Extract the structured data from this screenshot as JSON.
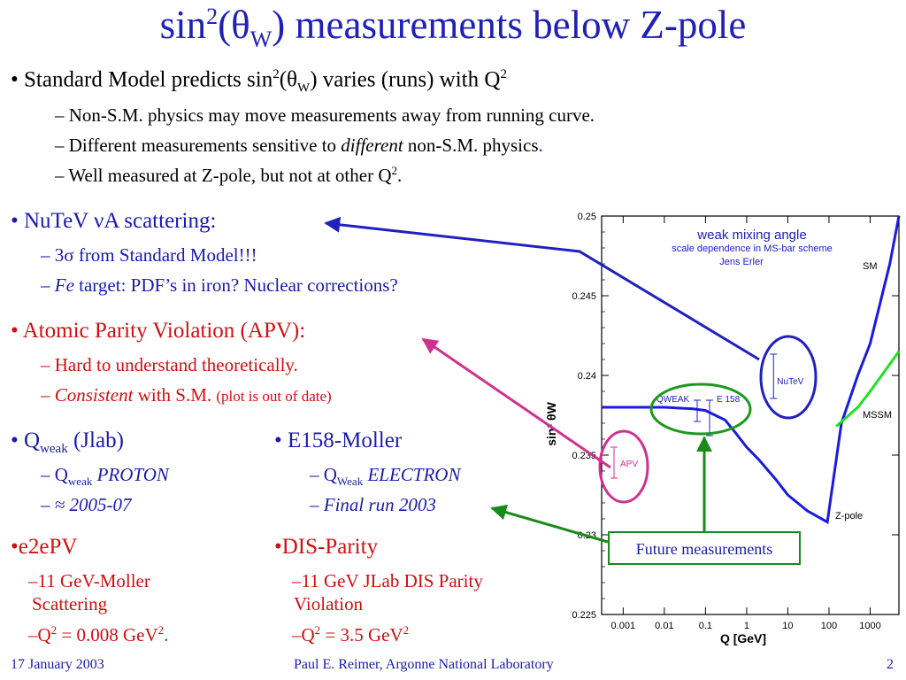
{
  "slide": {
    "title_pre": "sin",
    "title_sup": "2",
    "title_mid": "(θ",
    "title_sub": "W",
    "title_post": ") measurements below Z-pole",
    "intro": {
      "l1_a": "• Standard Model predicts sin",
      "l1_sup": "2",
      "l1_b": "(θ",
      "l1_sub": "W",
      "l1_c": ") varies (runs) with Q",
      "l1_sup2": "2",
      "l2": "– Non-S.M. physics may move measurements away from running curve.",
      "l3_a": "– Different measurements sensitive to ",
      "l3_em": "different",
      "l3_b": " non-S.M. physics",
      "l3_dot": ".",
      "l4_a": "– Well measured at Z-pole, but not at other Q",
      "l4_sup": "2",
      "l4_b": "."
    },
    "nutev": {
      "head": "•  NuTeV νA scattering:",
      "s1": "–  3σ from Standard Model!!!",
      "s2_em": "Fe",
      "s2_rest": " target:  PDF’s in iron?  Nuclear corrections?"
    },
    "apv": {
      "head": "•  Atomic Parity Violation (APV):",
      "s1": "–  Hard to understand theoretically.",
      "s2_em": "Consistent",
      "s2_rest": " with S.M. ",
      "s2_small": "(plot is out of date)"
    },
    "qweak": {
      "head_a": "•  Q",
      "head_sub": "weak",
      "head_b": " (Jlab)",
      "s1_a": "–  Q",
      "s1_sub": "weak",
      "s1_em": " PROTON",
      "s2": "–    ≈ 2005-07"
    },
    "e158": {
      "head": "•  E158-Moller",
      "s1_a": "–  Q",
      "s1_sub": "Weak",
      "s1_em": " ELECTRON",
      "s2": "–  Final run 2003"
    },
    "e2epv": {
      "head": "•e2ePV",
      "s1a": "–11 GeV-Moller",
      "s1b": "Scattering",
      "s2_a": "–Q",
      "s2_sup": "2",
      "s2_b": " = 0.008 GeV",
      "s2_sup2": "2",
      "s2_c": "."
    },
    "dis": {
      "head": "•DIS-Parity",
      "s1a": "–11 GeV JLab DIS Parity",
      "s1b": "Violation",
      "s2_a": "–Q",
      "s2_sup": "2",
      "s2_b": " = 3.5 GeV",
      "s2_sup2": "2"
    },
    "future_box": "Future measurements",
    "footer": {
      "date": "17 January 2003",
      "author": "Paul E. Reimer, Argonne National Laboratory",
      "page": "2"
    }
  },
  "chart_data": {
    "type": "line",
    "title": "weak mixing angle",
    "subtitle1": "scale dependence in MS-bar scheme",
    "subtitle2": "Jens Erler",
    "xlabel": "Q [GeV]",
    "ylabel": "sin² θW",
    "x_scale": "log",
    "xticks": [
      "0.001",
      "0.01",
      "0.1",
      "1",
      "10",
      "100",
      "1000"
    ],
    "yticks": [
      "0.25",
      "0.245",
      "0.24",
      "0.235",
      "0.23",
      "0.225"
    ],
    "ylim": [
      0.225,
      0.25
    ],
    "xlim": [
      0.0003,
      5000
    ],
    "series": [
      {
        "name": "SM",
        "color": "#1a1ae0",
        "x": [
          0.0003,
          0.001,
          0.01,
          0.05,
          0.1,
          0.3,
          0.5,
          1,
          2,
          5,
          10,
          30,
          91.2,
          200,
          500,
          1000,
          3000,
          5000
        ],
        "y": [
          0.238,
          0.238,
          0.238,
          0.2379,
          0.2378,
          0.2372,
          0.2365,
          0.2355,
          0.2347,
          0.2335,
          0.2325,
          0.2315,
          0.2308,
          0.237,
          0.24,
          0.242,
          0.247,
          0.25
        ]
      },
      {
        "name": "MSSM",
        "color": "#20e020",
        "x": [
          150,
          500,
          1000,
          5000
        ],
        "y": [
          0.2368,
          0.238,
          0.239,
          0.2415
        ]
      }
    ],
    "labels": [
      "SM",
      "MSSM",
      "Z-pole"
    ],
    "markers": [
      {
        "name": "NuTeV",
        "x": 4.5,
        "y": 0.2412
      },
      {
        "name": "QWEAK",
        "x": 0.16,
        "y": 0.2378
      },
      {
        "name": "E 158",
        "x": 0.16,
        "y": 0.238
      },
      {
        "name": "APV",
        "x": 0.0005,
        "y": 0.236
      }
    ],
    "colors": {
      "axis_text": "#000000",
      "title": "#1a1ad0",
      "sm": "#1a1ae0",
      "mssm": "#20e020",
      "marker": "#2020c0"
    }
  },
  "colors": {
    "title": "#2020b8",
    "blue_text": "#1a1ab0",
    "red_text": "#d01010",
    "arrow_blue": "#2020c0",
    "arrow_magenta": "#d03090",
    "arrow_green": "#1a8a1a"
  }
}
